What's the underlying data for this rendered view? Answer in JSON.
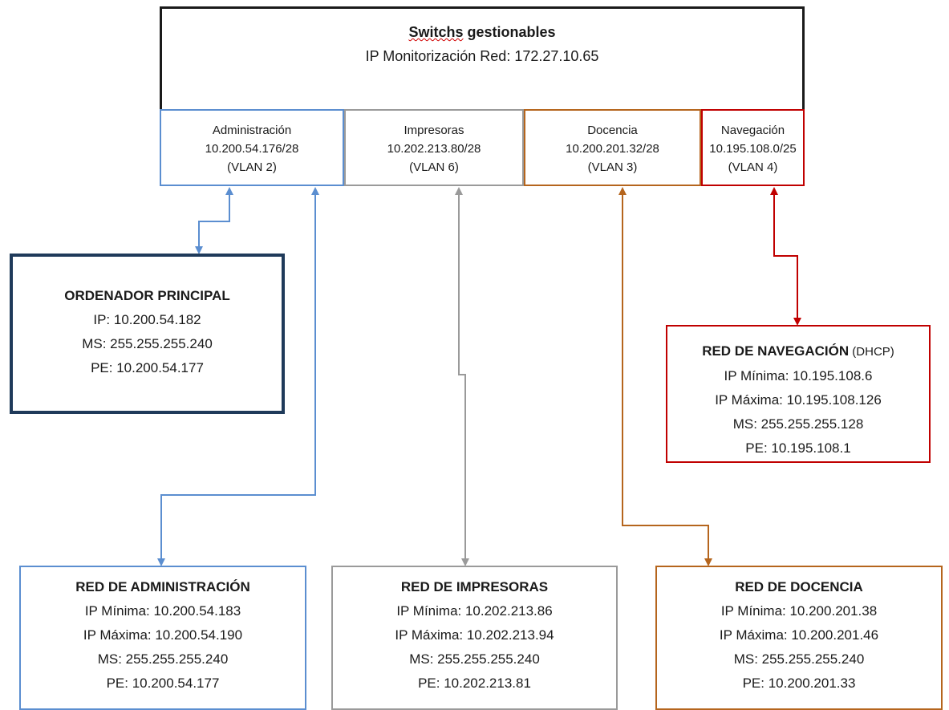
{
  "switch": {
    "title_word1": "Switchs",
    "title_word2": " gestionables",
    "subtitle": "IP Monitorización Red: 172.27.10.65"
  },
  "vlans": [
    {
      "name": "Administración",
      "subnet": "10.200.54.176/28",
      "vlan": "(VLAN 2)",
      "color": "#5b8ed0"
    },
    {
      "name": "Impresoras",
      "subnet": "10.202.213.80/28",
      "vlan": "(VLAN 6)",
      "color": "#9a9a9a"
    },
    {
      "name": "Docencia",
      "subnet": "10.200.201.32/28",
      "vlan": "(VLAN 3)",
      "color": "#b5651d"
    },
    {
      "name": "Navegación",
      "subnet": "10.195.108.0/25",
      "vlan": "(VLAN 4)",
      "color": "#c00000"
    }
  ],
  "ordenador": {
    "title": "ORDENADOR PRINCIPAL",
    "ip": "IP: 10.200.54.182",
    "ms": "MS: 255.255.255.240",
    "pe": "PE: 10.200.54.177",
    "color": "#1f3a5a"
  },
  "navegacion": {
    "title": "RED DE NAVEGACIÓN",
    "title_suffix": " (DHCP)",
    "ip_min": "IP Mínima: 10.195.108.6",
    "ip_max": "IP Máxima: 10.195.108.126",
    "ms": "MS: 255.255.255.128",
    "pe": "PE: 10.195.108.1"
  },
  "red_admin": {
    "title": "RED DE ADMINISTRACIÓN",
    "ip_min": "IP Mínima: 10.200.54.183",
    "ip_max": "IP Máxima: 10.200.54.190",
    "ms": "MS: 255.255.255.240",
    "pe": "PE: 10.200.54.177"
  },
  "red_imp": {
    "title": "RED DE IMPRESORAS",
    "ip_min": "IP Mínima: 10.202.213.86",
    "ip_max": "IP Máxima: 10.202.213.94",
    "ms": "MS: 255.255.255.240",
    "pe": "PE: 10.202.213.81"
  },
  "red_doc": {
    "title": "RED DE DOCENCIA",
    "ip_min": "IP Mínima: 10.200.201.38",
    "ip_max": "IP Máxima: 10.200.201.46",
    "ms": "MS: 255.255.255.240",
    "pe": "PE: 10.200.201.33"
  }
}
